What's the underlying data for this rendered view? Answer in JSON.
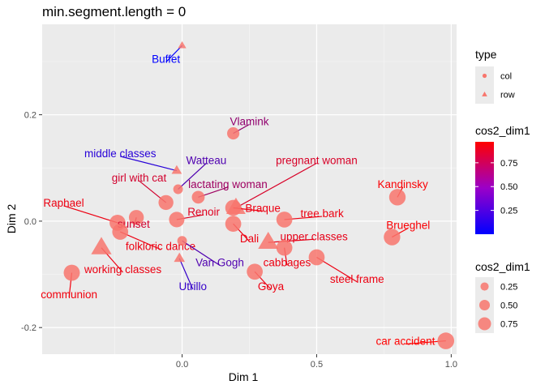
{
  "chart_data": {
    "type": "scatter",
    "title": "min.segment.length = 0",
    "xlabel": "Dim 1",
    "ylabel": "Dim 2",
    "xlim": [
      -0.52,
      1.02
    ],
    "ylim": [
      -0.25,
      0.37
    ],
    "x_ticks": [
      0.0,
      0.5,
      1.0
    ],
    "x_tick_labels": [
      "0.0",
      "0.5",
      "1.0"
    ],
    "y_ticks": [
      -0.2,
      0.0,
      0.2
    ],
    "y_tick_labels": [
      "-0.2",
      "0.0",
      "0.2"
    ],
    "grid": true,
    "legend_position": "right",
    "legend": {
      "type_title": "type",
      "type_entries": [
        {
          "label": "col",
          "shape": "circle"
        },
        {
          "label": "row",
          "shape": "triangle"
        }
      ],
      "color_title": "cos2_dim1",
      "color_ticks": [
        "0.25",
        "0.50",
        "0.75"
      ],
      "color_tick_values": [
        0.25,
        0.5,
        0.75
      ],
      "color_range": [
        0.0,
        0.97
      ],
      "size_title": "cos2_dim1",
      "size_entries": [
        {
          "label": "0.25",
          "value": 0.25
        },
        {
          "label": "0.50",
          "value": 0.5
        },
        {
          "label": "0.75",
          "value": 0.75
        }
      ]
    },
    "colors": {
      "low": "#0000ff",
      "high": "#ff0000",
      "point": "#f8766d"
    },
    "points": [
      {
        "label": "Buffet",
        "type": "row",
        "x": 0.0,
        "y": 0.33,
        "cos2": 0.0,
        "lx": -0.06,
        "ly": 0.305
      },
      {
        "label": "Vlamink",
        "type": "col",
        "x": 0.19,
        "y": 0.165,
        "cos2": 0.55,
        "lx": 0.25,
        "ly": 0.188
      },
      {
        "label": "middle classes",
        "type": "row",
        "x": -0.02,
        "y": 0.095,
        "cos2": 0.15,
        "lx": -0.23,
        "ly": 0.128
      },
      {
        "label": "Watteau",
        "type": "col",
        "x": -0.015,
        "y": 0.06,
        "cos2": 0.3,
        "lx": 0.09,
        "ly": 0.115
      },
      {
        "label": "pregnant woman",
        "type": "row",
        "x": 0.2,
        "y": 0.025,
        "cos2": 0.82,
        "lx": 0.5,
        "ly": 0.115
      },
      {
        "label": "girl with cat",
        "type": "col",
        "x": -0.06,
        "y": 0.035,
        "cos2": 0.8,
        "lx": -0.16,
        "ly": 0.082
      },
      {
        "label": "lactating woman",
        "type": "col",
        "x": 0.06,
        "y": 0.045,
        "cos2": 0.6,
        "lx": 0.17,
        "ly": 0.07
      },
      {
        "label": "Kandinsky",
        "type": "col",
        "x": 0.8,
        "y": 0.045,
        "cos2": 0.95,
        "lx": 0.82,
        "ly": 0.07
      },
      {
        "label": "Raphael",
        "type": "col",
        "x": -0.24,
        "y": -0.003,
        "cos2": 0.9,
        "lx": -0.44,
        "ly": 0.035
      },
      {
        "label": "Braque",
        "type": "col",
        "x": 0.19,
        "y": 0.025,
        "cos2": 0.9,
        "lx": 0.3,
        "ly": 0.025
      },
      {
        "label": "Renoir",
        "type": "col",
        "x": -0.02,
        "y": 0.003,
        "cos2": 0.85,
        "lx": 0.08,
        "ly": 0.018
      },
      {
        "label": "tree bark",
        "type": "col",
        "x": 0.38,
        "y": 0.003,
        "cos2": 0.9,
        "lx": 0.52,
        "ly": 0.015
      },
      {
        "label": "sunset",
        "type": "col",
        "x": -0.17,
        "y": 0.007,
        "cos2": 0.8,
        "lx": -0.18,
        "ly": -0.005
      },
      {
        "label": "Dali",
        "type": "col",
        "x": 0.19,
        "y": -0.005,
        "cos2": 0.9,
        "lx": 0.25,
        "ly": -0.032
      },
      {
        "label": "Brueghel",
        "type": "col",
        "x": 0.78,
        "y": -0.03,
        "cos2": 0.95,
        "lx": 0.84,
        "ly": -0.007
      },
      {
        "label": "folkloric dance",
        "type": "col",
        "x": -0.23,
        "y": -0.02,
        "cos2": 0.9,
        "lx": -0.08,
        "ly": -0.047
      },
      {
        "label": "upper classes",
        "type": "row",
        "x": 0.32,
        "y": -0.04,
        "cos2": 0.88,
        "lx": 0.49,
        "ly": -0.028
      },
      {
        "label": "working classes",
        "type": "row",
        "x": -0.3,
        "y": -0.05,
        "cos2": 0.9,
        "lx": -0.22,
        "ly": -0.09
      },
      {
        "label": "cabbages",
        "type": "col",
        "x": 0.38,
        "y": -0.05,
        "cos2": 0.9,
        "lx": 0.39,
        "ly": -0.077
      },
      {
        "label": "Van Gogh",
        "type": "col",
        "x": 0.0,
        "y": -0.037,
        "cos2": 0.3,
        "lx": 0.14,
        "ly": -0.077
      },
      {
        "label": "steel frame",
        "type": "col",
        "x": 0.5,
        "y": -0.068,
        "cos2": 0.9,
        "lx": 0.65,
        "ly": -0.108
      },
      {
        "label": "communion",
        "type": "col",
        "x": -0.41,
        "y": -0.097,
        "cos2": 0.92,
        "lx": -0.42,
        "ly": -0.137
      },
      {
        "label": "Goya",
        "type": "col",
        "x": 0.27,
        "y": -0.095,
        "cos2": 0.9,
        "lx": 0.33,
        "ly": -0.122
      },
      {
        "label": "Utrillo",
        "type": "row",
        "x": -0.01,
        "y": -0.07,
        "cos2": 0.2,
        "lx": 0.04,
        "ly": -0.122
      },
      {
        "label": "car accident",
        "type": "col",
        "x": 0.98,
        "y": -0.225,
        "cos2": 0.97,
        "lx": 0.83,
        "ly": -0.225
      }
    ]
  }
}
